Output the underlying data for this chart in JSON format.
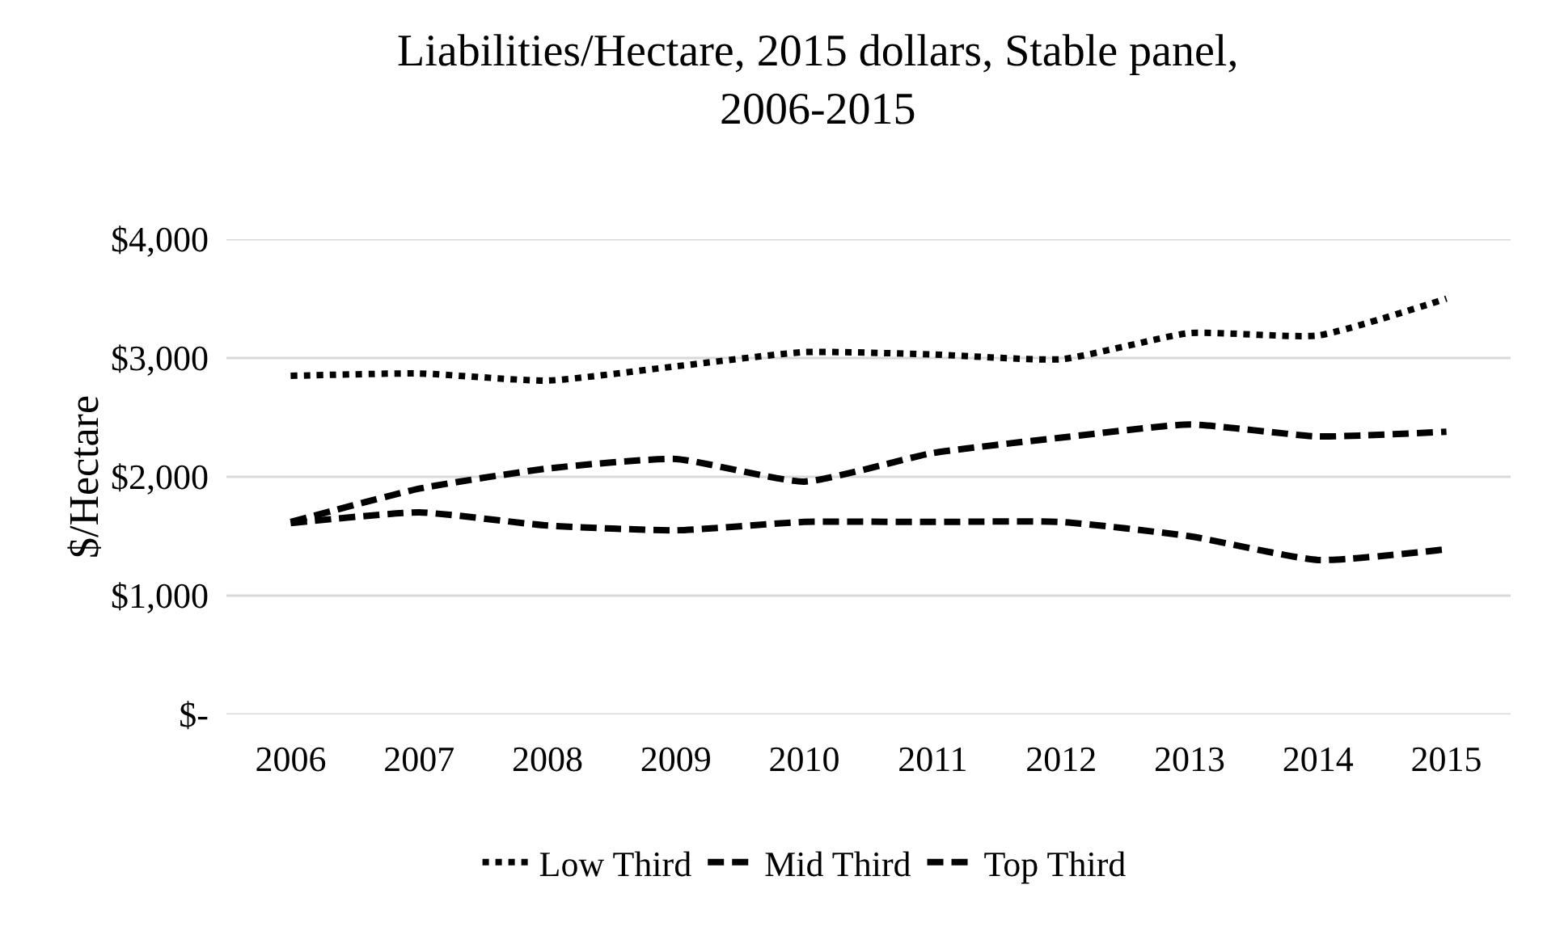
{
  "chart_data": {
    "type": "line",
    "title": "Liabilities/Hectare, 2015 dollars, Stable panel, 2006-2015",
    "ylabel": "$/Hectare",
    "categories": [
      "2006",
      "2007",
      "2008",
      "2009",
      "2010",
      "2011",
      "2012",
      "2013",
      "2014",
      "2015"
    ],
    "series": [
      {
        "name": "Low Third",
        "color": "#000000",
        "line_style": "dotted",
        "values": [
          2850,
          2870,
          2810,
          2930,
          3050,
          3030,
          2990,
          3210,
          3190,
          3500
        ]
      },
      {
        "name": "Mid Third",
        "color": "#000000",
        "line_style": "dashed",
        "values": [
          1620,
          1900,
          2070,
          2150,
          1960,
          2200,
          2330,
          2440,
          2340,
          2380
        ]
      },
      {
        "name": "Top Third",
        "color": "#000000",
        "line_style": "dashed",
        "values": [
          1610,
          1700,
          1590,
          1550,
          1620,
          1620,
          1620,
          1500,
          1300,
          1390
        ]
      }
    ],
    "ylim": [
      0,
      4000
    ],
    "yticks": [
      {
        "value": 0,
        "label": "$-"
      },
      {
        "value": 1000,
        "label": "$1,000"
      },
      {
        "value": 2000,
        "label": "$2,000"
      },
      {
        "value": 3000,
        "label": "$3,000"
      },
      {
        "value": 4000,
        "label": "$4,000"
      }
    ],
    "grid": "y",
    "legend": "bottom",
    "marker": "none"
  }
}
